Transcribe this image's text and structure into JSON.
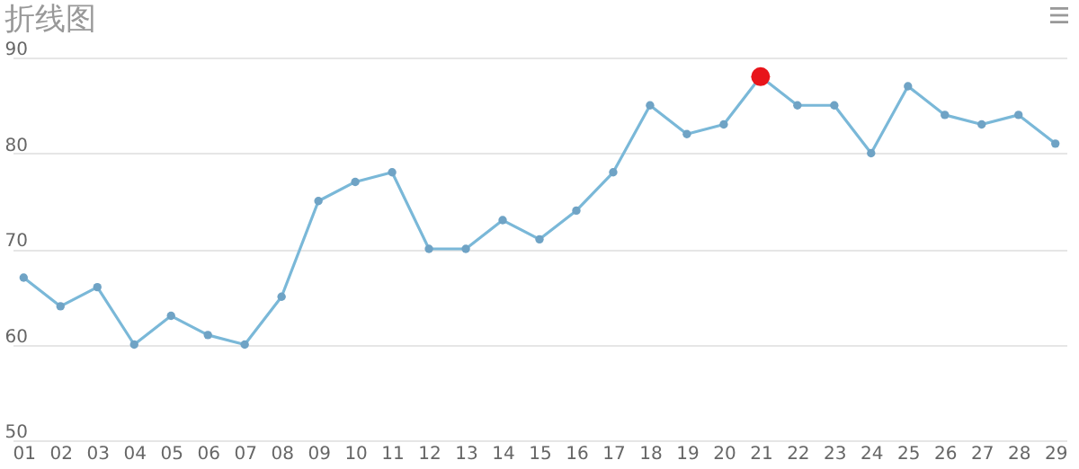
{
  "chart_data": {
    "type": "line",
    "title": "折线图",
    "categories": [
      "01",
      "02",
      "03",
      "04",
      "05",
      "06",
      "07",
      "08",
      "09",
      "10",
      "11",
      "12",
      "13",
      "14",
      "15",
      "16",
      "17",
      "18",
      "19",
      "20",
      "21",
      "22",
      "23",
      "24",
      "25",
      "26",
      "27",
      "28",
      "29"
    ],
    "series": [
      {
        "color": "#7ab8d8",
        "values": [
          67,
          64,
          66,
          60,
          63,
          61,
          60,
          65,
          75,
          77,
          78,
          70,
          70,
          73,
          71,
          74,
          78,
          85,
          82,
          83,
          88,
          85,
          85,
          80,
          87,
          84,
          83,
          84,
          81
        ]
      },
      {
        "type": "scatter",
        "color": "#e8141a",
        "x": [
          "21"
        ],
        "values": [
          88
        ]
      }
    ],
    "ylim": [
      50,
      90
    ],
    "yticks": [
      50,
      60,
      70,
      80,
      90
    ],
    "grid": "y",
    "marker": "circle",
    "line_style": "solid"
  }
}
